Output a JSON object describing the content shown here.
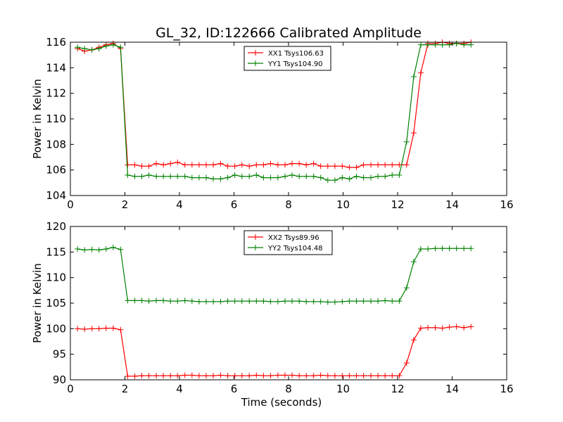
{
  "figure_title": "GL_32, ID:122666 Calibrated Amplitude",
  "colors": {
    "series1": "#ff0000",
    "series2": "#008000",
    "axes": "#000000",
    "background": "#ffffff"
  },
  "chart_data": [
    {
      "type": "line",
      "ylabel": "Power in Kelvin",
      "xlabel": "",
      "xlim": [
        0,
        16
      ],
      "ylim": [
        104,
        116
      ],
      "xticks": [
        0,
        2,
        4,
        6,
        8,
        10,
        12,
        14,
        16
      ],
      "yticks": [
        104,
        106,
        108,
        110,
        112,
        114,
        116
      ],
      "grid": false,
      "legend_position": "top-center",
      "marker": "plus",
      "x": [
        0.26,
        0.52,
        0.79,
        1.05,
        1.31,
        1.57,
        1.84,
        2.1,
        2.36,
        2.62,
        2.88,
        3.15,
        3.41,
        3.67,
        3.93,
        4.2,
        4.46,
        4.72,
        4.98,
        5.24,
        5.51,
        5.77,
        6.03,
        6.29,
        6.56,
        6.82,
        7.08,
        7.34,
        7.61,
        7.87,
        8.13,
        8.39,
        8.65,
        8.92,
        9.18,
        9.44,
        9.7,
        9.97,
        10.23,
        10.49,
        10.75,
        11.02,
        11.28,
        11.54,
        11.8,
        12.06,
        12.33,
        12.59,
        12.85,
        13.11,
        13.38,
        13.64,
        13.9,
        14.16,
        14.43,
        14.69
      ],
      "series": [
        {
          "name": "XX1 Tsys106.63",
          "color": "#ff0000",
          "values": [
            115.5,
            115.3,
            115.4,
            115.6,
            115.8,
            115.9,
            115.5,
            106.4,
            106.4,
            106.3,
            106.3,
            106.5,
            106.4,
            106.5,
            106.6,
            106.4,
            106.4,
            106.4,
            106.4,
            106.4,
            106.5,
            106.3,
            106.3,
            106.4,
            106.3,
            106.4,
            106.4,
            106.5,
            106.4,
            106.4,
            106.5,
            106.5,
            106.4,
            106.5,
            106.3,
            106.3,
            106.3,
            106.3,
            106.2,
            106.2,
            106.4,
            106.4,
            106.4,
            106.4,
            106.4,
            106.4,
            106.4,
            108.9,
            113.6,
            115.9,
            115.9,
            116.0,
            115.9,
            115.9,
            115.9,
            116.0
          ]
        },
        {
          "name": "YY1 Tsys104.90",
          "color": "#008000",
          "values": [
            115.6,
            115.5,
            115.4,
            115.5,
            115.7,
            115.8,
            115.6,
            105.6,
            105.5,
            105.5,
            105.6,
            105.5,
            105.5,
            105.5,
            105.5,
            105.5,
            105.4,
            105.4,
            105.4,
            105.3,
            105.3,
            105.4,
            105.6,
            105.5,
            105.5,
            105.6,
            105.4,
            105.4,
            105.4,
            105.5,
            105.6,
            105.5,
            105.5,
            105.5,
            105.4,
            105.2,
            105.2,
            105.4,
            105.3,
            105.5,
            105.4,
            105.4,
            105.5,
            105.5,
            105.6,
            105.6,
            108.2,
            113.3,
            115.8,
            115.8,
            115.8,
            115.8,
            115.8,
            115.9,
            115.8,
            115.8
          ]
        }
      ]
    },
    {
      "type": "line",
      "ylabel": "Power in Kelvin",
      "xlabel": "Time (seconds)",
      "xlim": [
        0,
        16
      ],
      "ylim": [
        90,
        120
      ],
      "xticks": [
        0,
        2,
        4,
        6,
        8,
        10,
        12,
        14,
        16
      ],
      "yticks": [
        90,
        95,
        100,
        105,
        110,
        115,
        120
      ],
      "grid": false,
      "legend_position": "top-center",
      "marker": "plus",
      "x": [
        0.26,
        0.52,
        0.79,
        1.05,
        1.31,
        1.57,
        1.84,
        2.1,
        2.36,
        2.62,
        2.88,
        3.15,
        3.41,
        3.67,
        3.93,
        4.2,
        4.46,
        4.72,
        4.98,
        5.24,
        5.51,
        5.77,
        6.03,
        6.29,
        6.56,
        6.82,
        7.08,
        7.34,
        7.61,
        7.87,
        8.13,
        8.39,
        8.65,
        8.92,
        9.18,
        9.44,
        9.7,
        9.97,
        10.23,
        10.49,
        10.75,
        11.02,
        11.28,
        11.54,
        11.8,
        12.06,
        12.33,
        12.59,
        12.85,
        13.11,
        13.38,
        13.64,
        13.9,
        14.16,
        14.43,
        14.69
      ],
      "series": [
        {
          "name": "XX2 Tsys89.96",
          "color": "#ff0000",
          "values": [
            100.0,
            99.9,
            100.0,
            100.0,
            100.1,
            100.1,
            99.8,
            90.7,
            90.7,
            90.8,
            90.8,
            90.8,
            90.8,
            90.8,
            90.8,
            90.9,
            90.9,
            90.8,
            90.8,
            90.8,
            90.9,
            90.8,
            90.8,
            90.8,
            90.8,
            90.9,
            90.8,
            90.8,
            90.9,
            90.9,
            90.9,
            90.8,
            90.8,
            90.8,
            90.9,
            90.8,
            90.8,
            90.8,
            90.8,
            90.8,
            90.8,
            90.8,
            90.8,
            90.8,
            90.8,
            90.8,
            93.3,
            97.8,
            100.1,
            100.2,
            100.2,
            100.1,
            100.3,
            100.4,
            100.2,
            100.4
          ]
        },
        {
          "name": "YY2 Tsys104.48",
          "color": "#008000",
          "values": [
            115.6,
            115.4,
            115.5,
            115.4,
            115.6,
            115.9,
            115.5,
            105.5,
            105.5,
            105.5,
            105.4,
            105.5,
            105.5,
            105.4,
            105.4,
            105.5,
            105.4,
            105.3,
            105.3,
            105.3,
            105.3,
            105.4,
            105.4,
            105.4,
            105.4,
            105.4,
            105.4,
            105.3,
            105.3,
            105.4,
            105.4,
            105.4,
            105.3,
            105.3,
            105.3,
            105.2,
            105.2,
            105.3,
            105.4,
            105.4,
            105.4,
            105.4,
            105.4,
            105.5,
            105.4,
            105.4,
            108.0,
            113.1,
            115.6,
            115.6,
            115.7,
            115.7,
            115.7,
            115.7,
            115.7,
            115.7
          ]
        }
      ]
    }
  ]
}
